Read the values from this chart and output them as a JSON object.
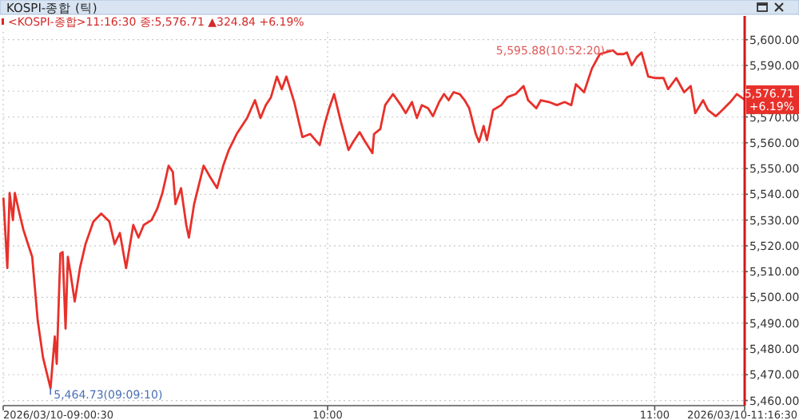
{
  "chart_data": {
    "type": "line",
    "title": "KOSPI-종합 (틱)",
    "subtitle": "<KOSPI-종합>11:16:30 종:5,576.71 ▲324.84 +6.19%",
    "x": [
      9.009,
      9.021,
      9.028,
      9.038,
      9.044,
      9.057,
      9.07,
      9.081,
      9.097,
      9.114,
      9.13,
      9.153,
      9.166,
      9.172,
      9.183,
      9.19,
      9.199,
      9.206,
      9.216,
      9.227,
      9.243,
      9.26,
      9.284,
      9.308,
      9.333,
      9.349,
      9.365,
      9.384,
      9.406,
      9.422,
      9.438,
      9.462,
      9.479,
      9.495,
      9.514,
      9.527,
      9.535,
      9.552,
      9.568,
      9.576,
      9.592,
      9.621,
      9.641,
      9.662,
      9.681,
      9.698,
      9.722,
      9.754,
      9.778,
      9.795,
      9.811,
      9.827,
      9.845,
      9.86,
      9.874,
      9.898,
      9.923,
      9.947,
      9.976,
      9.991,
      10.005,
      10.02,
      10.04,
      10.064,
      10.078,
      10.098,
      10.112,
      10.137,
      10.142,
      10.161,
      10.176,
      10.2,
      10.224,
      10.239,
      10.258,
      10.273,
      10.288,
      10.307,
      10.322,
      10.341,
      10.356,
      10.37,
      10.385,
      10.404,
      10.419,
      10.433,
      10.453,
      10.463,
      10.477,
      10.487,
      10.506,
      10.531,
      10.55,
      10.575,
      10.599,
      10.613,
      10.638,
      10.652,
      10.677,
      10.701,
      10.725,
      10.745,
      10.759,
      10.784,
      10.808,
      10.832,
      10.872,
      10.885,
      10.905,
      10.915,
      10.93,
      10.945,
      10.96,
      10.98,
      11.003,
      11.027,
      11.041,
      11.066,
      11.09,
      11.11,
      11.124,
      11.148,
      11.163,
      11.187,
      11.207,
      11.231,
      11.251,
      11.275
    ],
    "series": [
      {
        "color": "#e8302a",
        "values": [
          5538.7,
          5511.4,
          5540.5,
          5530.0,
          5540.5,
          5533.1,
          5526.3,
          5521.9,
          5515.7,
          5490.9,
          5476.7,
          5464.73,
          5484.8,
          5474.2,
          5517.0,
          5517.6,
          5487.9,
          5515.7,
          5507.7,
          5498.4,
          5511.4,
          5520.7,
          5529.4,
          5532.5,
          5529.4,
          5520.7,
          5525.0,
          5511.4,
          5528.1,
          5523.2,
          5528.1,
          5530.0,
          5534.3,
          5540.5,
          5551.1,
          5548.6,
          5536.2,
          5542.4,
          5528.1,
          5523.2,
          5536.2,
          5551.1,
          5546.7,
          5542.4,
          5551.1,
          5557.2,
          5563.4,
          5569.6,
          5576.5,
          5569.6,
          5574.6,
          5577.7,
          5585.7,
          5580.8,
          5585.7,
          5575.8,
          5562.2,
          5563.4,
          5559.1,
          5567.2,
          5573.4,
          5578.9,
          5568.4,
          5557.2,
          5560.3,
          5564.1,
          5561.0,
          5556.0,
          5563.4,
          5565.3,
          5574.6,
          5578.9,
          5574.6,
          5571.5,
          5575.8,
          5569.6,
          5574.6,
          5573.4,
          5570.3,
          5575.8,
          5578.9,
          5576.5,
          5579.6,
          5578.9,
          5576.5,
          5573.4,
          5563.4,
          5560.3,
          5566.5,
          5561.0,
          5572.7,
          5574.6,
          5577.7,
          5578.9,
          5582.0,
          5576.5,
          5573.4,
          5576.5,
          5575.8,
          5574.6,
          5575.8,
          5574.6,
          5582.7,
          5579.6,
          5588.8,
          5594.4,
          5595.88,
          5594.4,
          5594.4,
          5595.0,
          5590.1,
          5593.2,
          5595.0,
          5585.7,
          5585.1,
          5585.1,
          5580.8,
          5585.1,
          5579.6,
          5582.0,
          5571.5,
          5576.5,
          5572.7,
          5570.3,
          5572.7,
          5575.8,
          5578.9,
          5576.71
        ]
      }
    ],
    "xlim": [
      9.00833,
      11.275
    ],
    "xticks": [
      {
        "value": 9.00833,
        "label": "2026/03/10-09:00:30"
      },
      {
        "value": 10,
        "label": "10:00"
      },
      {
        "value": 11,
        "label": "11:00"
      },
      {
        "value": 11.275,
        "label": "2026/03/10-11:16:30"
      }
    ],
    "ylim": [
      5458,
      5603
    ],
    "yticks": [
      {
        "value": 5460,
        "label": "5,460.00"
      },
      {
        "value": 5470,
        "label": "5,470.00"
      },
      {
        "value": 5480,
        "label": "5,480.00"
      },
      {
        "value": 5490,
        "label": "5,490.00"
      },
      {
        "value": 5500,
        "label": "5,500.00"
      },
      {
        "value": 5510,
        "label": "5,510.00"
      },
      {
        "value": 5520,
        "label": "5,520.00"
      },
      {
        "value": 5530,
        "label": "5,530.00"
      },
      {
        "value": 5540,
        "label": "5,540.00"
      },
      {
        "value": 5550,
        "label": "5,550.00"
      },
      {
        "value": 5560,
        "label": "5,560.00"
      },
      {
        "value": 5570,
        "label": "5,570.00"
      },
      {
        "value": 5580,
        "label": null
      },
      {
        "value": 5590,
        "label": "5,590.00"
      },
      {
        "value": 5600,
        "label": "5,600.00"
      }
    ],
    "grid": true,
    "marker": "none",
    "line_style": "solid",
    "annotations": [
      {
        "text": "5,595.88(10:52:20)",
        "x": 10.872,
        "y": 5595.88
      },
      {
        "text": "5,464.73(09:09:10)",
        "x": 9.153,
        "y": 5464.73
      },
      {
        "text": "5,576.71",
        "x": 11.275,
        "y": 5576.71
      },
      {
        "text": "+6.19%",
        "x": 11.275,
        "y": 5576.71
      }
    ]
  }
}
